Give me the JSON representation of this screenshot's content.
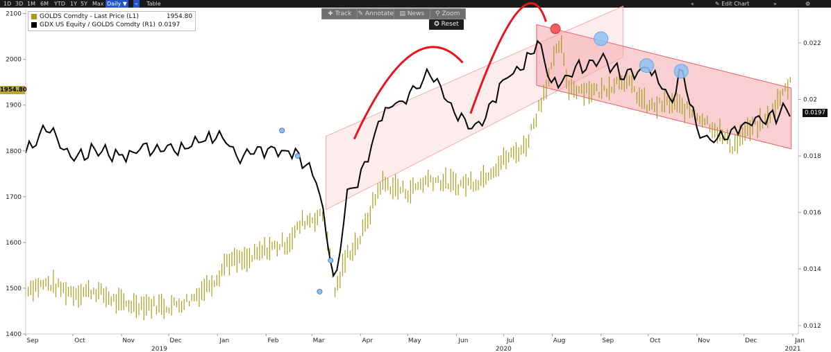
{
  "topbar": {
    "ranges": [
      "1D",
      "3D",
      "1M",
      "6M",
      "YTD",
      "1Y",
      "5Y",
      "Max"
    ],
    "interval": "Daily ▼",
    "table_label": "Table",
    "edit_chart": "Edit Chart",
    "collapse_icon": "double-chevron-left-icon",
    "settings_icon": "gear-icon"
  },
  "toolbar": {
    "track": "✚ Track",
    "annotate": "✎ Annotate",
    "news": "▤ News",
    "zoom": "⚲ Zoom"
  },
  "reset_label": "✪ Reset",
  "legend": {
    "gold_name": "GOLDS Comdty - Last Price (L1)",
    "gold_value": "1954.80",
    "ratio_name": "GDX US Equity / GOLDS Comdty (R1)",
    "ratio_value": "0.0197"
  },
  "price_tag": "1954.80",
  "ratio_tag": "0.0197",
  "colors": {
    "gold": "#a99b1c",
    "ratio": "#000000",
    "channel": "#f4a9ad",
    "arc": "#e8141e",
    "blue_marker": "#8ec2f2",
    "red_marker": "#f06060"
  },
  "chart_data": {
    "type": "line",
    "left_axis": {
      "ticks": [
        "1400",
        "1500",
        "1600",
        "1700",
        "1800",
        "1900",
        "2000",
        "2100"
      ],
      "range": [
        1400,
        2110
      ]
    },
    "right_axis": {
      "ticks": [
        "0.012",
        "0.014",
        "0.016",
        "0.018",
        "0.02",
        "0.022"
      ],
      "range": [
        0.0117,
        0.0232
      ]
    },
    "x_months": [
      "Sep",
      "Oct",
      "Nov",
      "Dec",
      "Jan",
      "Feb",
      "Mar",
      "Apr",
      "May",
      "Jun",
      "Jul",
      "Aug",
      "Sep",
      "Oct",
      "Nov",
      "Dec",
      "Jan"
    ],
    "x_years": [
      "2019",
      "2020",
      "2021"
    ],
    "gold_series": {
      "name": "GOLDS Comdty - Last Price (L1)",
      "x": [
        "2019-09-01",
        "2019-09-15",
        "2019-10-01",
        "2019-10-15",
        "2019-11-01",
        "2019-11-15",
        "2019-12-01",
        "2019-12-15",
        "2020-01-01",
        "2020-01-07",
        "2020-01-20",
        "2020-02-01",
        "2020-02-15",
        "2020-02-24",
        "2020-03-09",
        "2020-03-16",
        "2020-03-23",
        "2020-04-01",
        "2020-04-14",
        "2020-05-01",
        "2020-05-15",
        "2020-06-01",
        "2020-06-15",
        "2020-07-01",
        "2020-07-15",
        "2020-07-24",
        "2020-08-06",
        "2020-08-11",
        "2020-08-20",
        "2020-09-01",
        "2020-09-15",
        "2020-10-01",
        "2020-10-15",
        "2020-11-01",
        "2020-11-09",
        "2020-11-24",
        "2020-12-01",
        "2020-12-15",
        "2020-12-31"
      ],
      "y": [
        1500,
        1510,
        1490,
        1495,
        1465,
        1465,
        1460,
        1475,
        1525,
        1560,
        1560,
        1585,
        1600,
        1645,
        1660,
        1490,
        1570,
        1610,
        1730,
        1710,
        1740,
        1725,
        1735,
        1780,
        1810,
        1900,
        2040,
        1940,
        1935,
        1930,
        1960,
        1895,
        1905,
        1880,
        1860,
        1810,
        1840,
        1865,
        1955
      ]
    },
    "ratio_series": {
      "name": "GDX US Equity / GOLDS Comdty (R1)",
      "x": [
        "2019-09-01",
        "2019-09-15",
        "2019-10-01",
        "2019-10-15",
        "2019-11-01",
        "2019-11-15",
        "2019-12-01",
        "2019-12-15",
        "2020-01-01",
        "2020-01-15",
        "2020-02-01",
        "2020-02-20",
        "2020-02-27",
        "2020-03-05",
        "2020-03-16",
        "2020-03-23",
        "2020-04-01",
        "2020-04-14",
        "2020-05-01",
        "2020-05-15",
        "2020-06-01",
        "2020-06-15",
        "2020-07-01",
        "2020-07-15",
        "2020-07-24",
        "2020-08-01",
        "2020-08-15",
        "2020-09-01",
        "2020-09-15",
        "2020-10-01",
        "2020-10-15",
        "2020-10-22",
        "2020-11-01",
        "2020-11-09",
        "2020-11-20",
        "2020-12-01",
        "2020-12-15",
        "2020-12-31"
      ],
      "y": [
        0.0182,
        0.019,
        0.018,
        0.0182,
        0.018,
        0.0183,
        0.0182,
        0.0183,
        0.0188,
        0.018,
        0.0182,
        0.0181,
        0.0176,
        0.017,
        0.0134,
        0.0165,
        0.0172,
        0.0195,
        0.0201,
        0.021,
        0.0195,
        0.019,
        0.0206,
        0.0213,
        0.022,
        0.0205,
        0.021,
        0.0215,
        0.0208,
        0.0212,
        0.0199,
        0.021,
        0.019,
        0.0185,
        0.0188,
        0.019,
        0.0193,
        0.0197
      ]
    },
    "markers": {
      "blue_small": [
        {
          "x": "2020-02-11",
          "y": 0.0189
        },
        {
          "x": "2020-02-21",
          "y": 0.018
        },
        {
          "x": "2020-03-06",
          "y": 0.0132
        },
        {
          "x": "2020-03-13",
          "y": 0.0143
        }
      ],
      "blue_large": [
        {
          "x": "2020-09-01",
          "y": 0.02215
        },
        {
          "x": "2020-09-30",
          "y": 0.0212
        },
        {
          "x": "2020-10-22",
          "y": 0.021
        }
      ],
      "red": [
        {
          "x": "2020-08-03",
          "y": 0.0225
        }
      ]
    },
    "legend_position": "top-left",
    "grid": false
  }
}
